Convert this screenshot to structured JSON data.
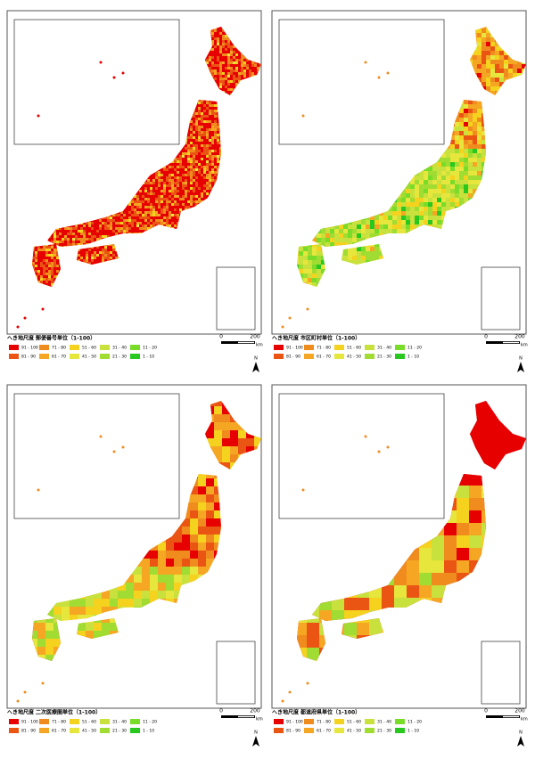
{
  "legend_title": "へき地尺度",
  "panels": [
    {
      "unit": "郵便番号単位（1-100）"
    },
    {
      "unit": "市区町村単位（1-100）"
    },
    {
      "unit": "二次医療圏単位（1-100）"
    },
    {
      "unit": "都道府県単位（1-100）"
    }
  ],
  "legend": [
    {
      "label": "91 - 100",
      "color": "#e60000"
    },
    {
      "label": "81 - 90",
      "color": "#ea5514"
    },
    {
      "label": "71 - 80",
      "color": "#f08c1e"
    },
    {
      "label": "61 - 70",
      "color": "#f5a623"
    },
    {
      "label": "51 - 60",
      "color": "#f5d21e"
    },
    {
      "label": "41 - 50",
      "color": "#e6e63c"
    },
    {
      "label": "31 - 40",
      "color": "#c8e13c"
    },
    {
      "label": "21 - 30",
      "color": "#a0dc32"
    },
    {
      "label": "11 - 20",
      "color": "#78dc28"
    },
    {
      "label": "1 - 10",
      "color": "#28c81e"
    }
  ],
  "scale": {
    "start": "0",
    "end": "200",
    "unit": "km"
  },
  "north": "N"
}
